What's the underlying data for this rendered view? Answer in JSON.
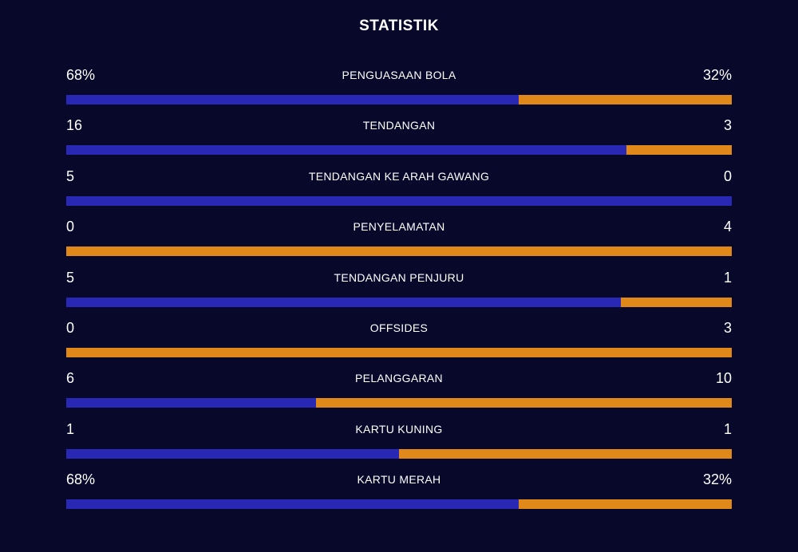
{
  "title": "STATISTIK",
  "colors": {
    "background": "#07082a",
    "home": "#2828b4",
    "away": "#e0881a",
    "text": "#ffffff"
  },
  "stats": [
    {
      "label": "PENGUASAAN BOLA",
      "left": "68%",
      "right": "32%",
      "left_share": 0.68
    },
    {
      "label": "TENDANGAN",
      "left": "16",
      "right": "3",
      "left_share": 0.842
    },
    {
      "label": "TENDANGAN KE ARAH GAWANG",
      "left": "5",
      "right": "0",
      "left_share": 1.0
    },
    {
      "label": "PENYELAMATAN",
      "left": "0",
      "right": "4",
      "left_share": 0.0
    },
    {
      "label": "TENDANGAN PENJURU",
      "left": "5",
      "right": "1",
      "left_share": 0.833
    },
    {
      "label": "OFFSIDES",
      "left": "0",
      "right": "3",
      "left_share": 0.0
    },
    {
      "label": "PELANGGARAN",
      "left": "6",
      "right": "10",
      "left_share": 0.375
    },
    {
      "label": "KARTU KUNING",
      "left": "1",
      "right": "1",
      "left_share": 0.5
    },
    {
      "label": "KARTU MERAH",
      "left": "68%",
      "right": "32%",
      "left_share": 0.68
    }
  ]
}
